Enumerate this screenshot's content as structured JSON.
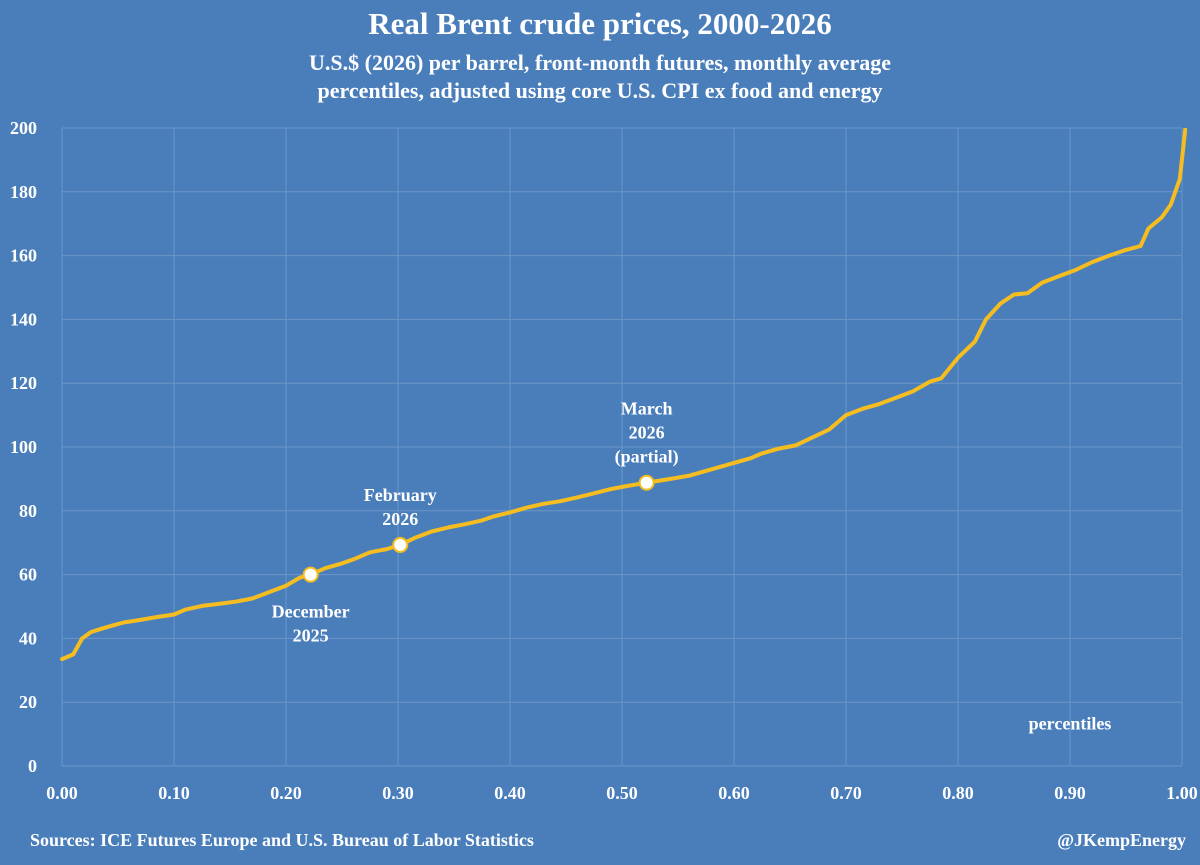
{
  "chart_data": {
    "type": "line",
    "title": "Real Brent crude prices, 2000-2026",
    "subtitle_lines": [
      "U.S.$ (2026) per barrel, front-month futures, monthly average",
      "percentiles, adjusted using core U.S. CPI ex food and energy"
    ],
    "xlabel": "percentiles",
    "ylabel": "",
    "xlim": [
      0,
      1
    ],
    "ylim": [
      0,
      200
    ],
    "x_ticks": [
      "0.00",
      "0.10",
      "0.20",
      "0.30",
      "0.40",
      "0.50",
      "0.60",
      "0.70",
      "0.80",
      "0.90",
      "1.00"
    ],
    "y_ticks": [
      "0",
      "20",
      "40",
      "60",
      "80",
      "100",
      "120",
      "140",
      "160",
      "180",
      "200"
    ],
    "grid": true,
    "colors": {
      "background": "#4a7ebb",
      "line": "#f5bd1f",
      "grid": "#6b95c8",
      "marker": "#ffffff"
    },
    "series": [
      {
        "name": "Real Brent price",
        "points": [
          [
            0.0,
            33.5
          ],
          [
            0.01,
            35.0
          ],
          [
            0.018,
            40.0
          ],
          [
            0.026,
            42.0
          ],
          [
            0.035,
            43.0
          ],
          [
            0.045,
            44.0
          ],
          [
            0.055,
            45.0
          ],
          [
            0.07,
            45.8
          ],
          [
            0.085,
            46.7
          ],
          [
            0.1,
            47.5
          ],
          [
            0.11,
            49.0
          ],
          [
            0.125,
            50.2
          ],
          [
            0.14,
            50.8
          ],
          [
            0.155,
            51.5
          ],
          [
            0.17,
            52.5
          ],
          [
            0.185,
            54.5
          ],
          [
            0.2,
            56.5
          ],
          [
            0.212,
            59.0
          ],
          [
            0.222,
            60.0
          ],
          [
            0.235,
            62.0
          ],
          [
            0.25,
            63.5
          ],
          [
            0.262,
            65.0
          ],
          [
            0.275,
            67.0
          ],
          [
            0.29,
            68.0
          ],
          [
            0.302,
            69.3
          ],
          [
            0.315,
            71.5
          ],
          [
            0.33,
            73.5
          ],
          [
            0.345,
            74.8
          ],
          [
            0.36,
            75.8
          ],
          [
            0.375,
            77.0
          ],
          [
            0.385,
            78.2
          ],
          [
            0.4,
            79.5
          ],
          [
            0.415,
            81.0
          ],
          [
            0.43,
            82.2
          ],
          [
            0.445,
            83.0
          ],
          [
            0.46,
            84.2
          ],
          [
            0.475,
            85.5
          ],
          [
            0.49,
            86.8
          ],
          [
            0.505,
            87.8
          ],
          [
            0.522,
            88.8
          ],
          [
            0.54,
            89.8
          ],
          [
            0.56,
            91.0
          ],
          [
            0.58,
            93.0
          ],
          [
            0.6,
            95.0
          ],
          [
            0.615,
            96.5
          ],
          [
            0.625,
            98.0
          ],
          [
            0.64,
            99.5
          ],
          [
            0.655,
            100.5
          ],
          [
            0.67,
            103.0
          ],
          [
            0.685,
            105.5
          ],
          [
            0.7,
            110.0
          ],
          [
            0.715,
            112.0
          ],
          [
            0.73,
            113.5
          ],
          [
            0.745,
            115.5
          ],
          [
            0.76,
            117.5
          ],
          [
            0.775,
            120.5
          ],
          [
            0.785,
            121.5
          ],
          [
            0.8,
            128.0
          ],
          [
            0.815,
            133.0
          ],
          [
            0.825,
            140.0
          ],
          [
            0.838,
            145.0
          ],
          [
            0.85,
            147.8
          ],
          [
            0.862,
            148.2
          ],
          [
            0.875,
            151.5
          ],
          [
            0.89,
            153.5
          ],
          [
            0.905,
            155.5
          ],
          [
            0.92,
            158.0
          ],
          [
            0.935,
            160.0
          ],
          [
            0.95,
            161.8
          ],
          [
            0.963,
            163.0
          ],
          [
            0.97,
            168.5
          ],
          [
            0.982,
            172.0
          ],
          [
            0.99,
            176.0
          ],
          [
            0.998,
            184.0
          ],
          [
            1.003,
            200.0
          ]
        ]
      }
    ],
    "highlights": [
      {
        "x": 0.222,
        "y": 60.0,
        "label_lines": [
          "December",
          "2025"
        ],
        "position": "below"
      },
      {
        "x": 0.302,
        "y": 69.3,
        "label_lines": [
          "February",
          "2026"
        ],
        "position": "above"
      },
      {
        "x": 0.522,
        "y": 88.8,
        "label_lines": [
          "March",
          "2026",
          "(partial)"
        ],
        "position": "above"
      }
    ],
    "source": "Sources: ICE Futures Europe and U.S. Bureau of Labor Statistics",
    "credit": "@JKempEnergy"
  }
}
